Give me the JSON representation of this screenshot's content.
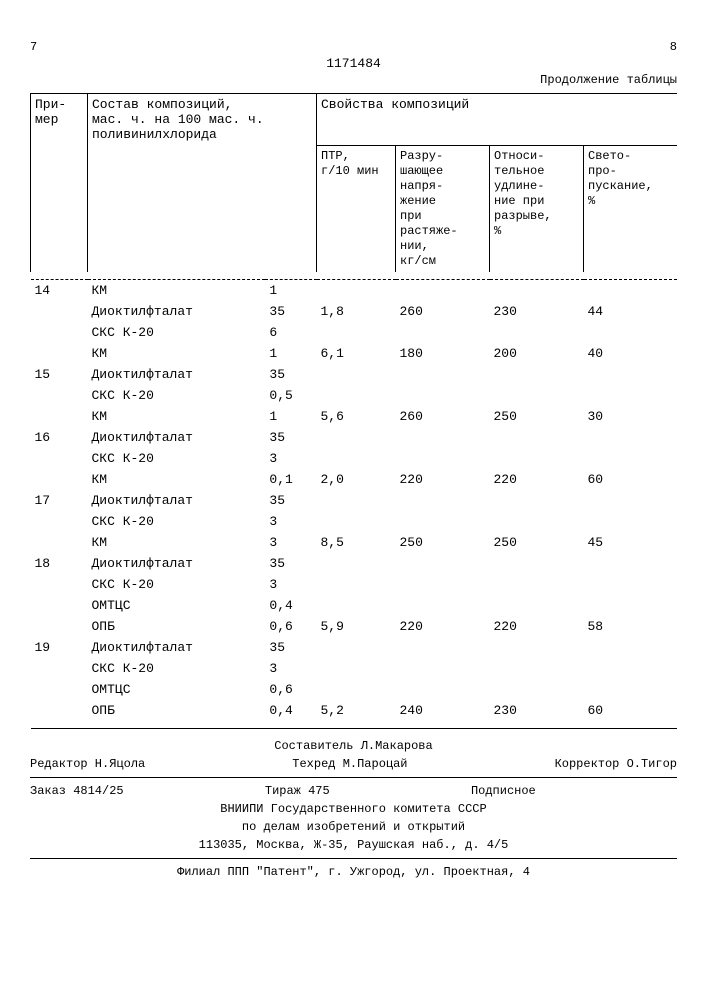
{
  "page_left": "7",
  "doc_number": "1171484",
  "page_right": "8",
  "continuation": "Продолжение таблицы",
  "headers": {
    "primer": "При-\nмер",
    "composition": "Состав композиций,\nмас. ч. на 100 мас. ч.\nполивинилхлорида",
    "properties": "Свойства композиций",
    "ptr": "ПТР,\nг/10 мин",
    "stress": "Разру-\nшающее\nнапря-\nжение\nпри\nрастяже-\nнии,\nкг/см",
    "elong": "Относи-\nтельное\nудлине-\nние при\nразрыве,\n%",
    "light": "Свето-\nпро-\nпускание,\n%"
  },
  "rows": [
    {
      "primer": "14",
      "comp": [
        [
          "КМ",
          "1"
        ],
        [
          "Диоктилфталат",
          "35"
        ]
      ],
      "ptr": "1,8",
      "stress": "260",
      "elong": "230",
      "light": "44"
    },
    {
      "primer": "",
      "comp": [
        [
          "СКС К-20",
          "6"
        ],
        [
          "КМ",
          "1"
        ]
      ],
      "ptr": "6,1",
      "stress": "180",
      "elong": "200",
      "light": "40"
    },
    {
      "primer": "15",
      "comp": [
        [
          "Диоктилфталат",
          "35"
        ]
      ],
      "ptr": "",
      "stress": "",
      "elong": "",
      "light": ""
    },
    {
      "primer": "",
      "comp": [
        [
          "СКС К-20",
          "0,5"
        ],
        [
          "КМ",
          "1"
        ]
      ],
      "ptr": "5,6",
      "stress": "260",
      "elong": "250",
      "light": "30"
    },
    {
      "primer": "16",
      "comp": [
        [
          "Диоктилфталат",
          "35"
        ]
      ],
      "ptr": "",
      "stress": "",
      "elong": "",
      "light": ""
    },
    {
      "primer": "",
      "comp": [
        [
          "СКС К-20",
          "3"
        ],
        [
          "КМ",
          "0,1"
        ]
      ],
      "ptr": "2,0",
      "stress": "220",
      "elong": "220",
      "light": "60"
    },
    {
      "primer": "17",
      "comp": [
        [
          "Диоктилфталат",
          "35"
        ]
      ],
      "ptr": "",
      "stress": "",
      "elong": "",
      "light": ""
    },
    {
      "primer": "",
      "comp": [
        [
          "СКС К-20",
          "3"
        ]
      ],
      "ptr": "",
      "stress": "",
      "elong": "",
      "light": ""
    },
    {
      "primer": "",
      "comp": [
        [
          "КМ",
          "3"
        ]
      ],
      "ptr": "8,5",
      "stress": "250",
      "elong": "250",
      "light": "45"
    },
    {
      "primer": "18",
      "comp": [
        [
          "Диоктилфталат",
          "35"
        ]
      ],
      "ptr": "",
      "stress": "",
      "elong": "",
      "light": ""
    },
    {
      "primer": "",
      "comp": [
        [
          "СКС К-20",
          "3"
        ]
      ],
      "ptr": "",
      "stress": "",
      "elong": "",
      "light": ""
    },
    {
      "primer": "",
      "comp": [
        [
          "ОМТЦС",
          "0,4"
        ],
        [
          "ОПБ",
          "0,6"
        ]
      ],
      "ptr": "5,9",
      "stress": "220",
      "elong": "220",
      "light": "58"
    },
    {
      "primer": "19",
      "comp": [
        [
          "Диоктилфталат",
          "35"
        ],
        [
          "СКС К-20",
          "3"
        ]
      ],
      "ptr": "",
      "stress": "",
      "elong": "",
      "light": ""
    },
    {
      "primer": "",
      "comp": [
        [
          "ОМТЦС",
          "0,6"
        ],
        [
          "ОПБ",
          "0,4"
        ]
      ],
      "ptr": "5,2",
      "stress": "240",
      "elong": "230",
      "light": "60"
    }
  ],
  "footer": {
    "compiler": "Составитель Л.Макарова",
    "editor": "Редактор Н.Яцола",
    "tech": "Техред М.Пароцай",
    "corrector": "Корректор О.Тигор",
    "order": "Заказ 4814/25",
    "tirazh": "Тираж 475",
    "sub": "Подписное",
    "org1": "ВНИИПИ Государственного комитета СССР",
    "org2": "по делам изобретений и открытий",
    "addr1": "113035, Москва, Ж-35, Раушская наб., д. 4/5",
    "addr2": "Филиал ППП \"Патент\", г. Ужгород, ул. Проектная, 4"
  }
}
